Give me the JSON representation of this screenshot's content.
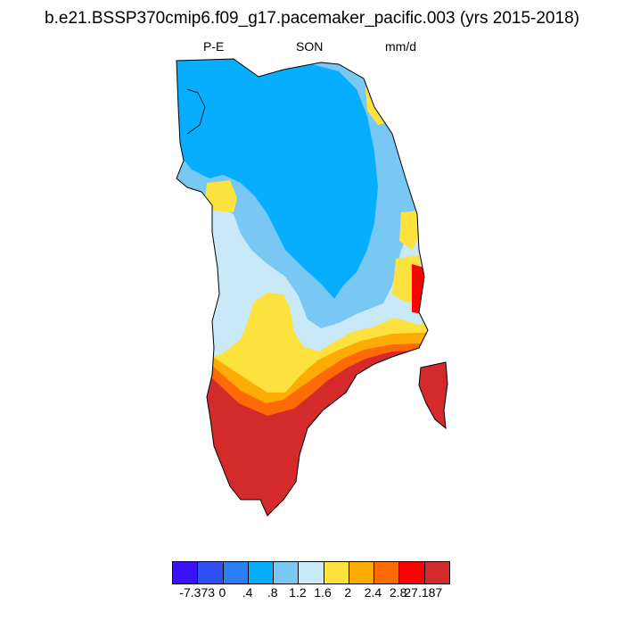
{
  "title": "b.e21.BSSP370cmip6.f09_g17.pacemaker_pacific.003 (yrs 2015-2018)",
  "left_label": "P-E",
  "center_label": "SON",
  "right_label": "mm/d",
  "colorbar": {
    "colors": [
      "#3a10f5",
      "#2f4ff0",
      "#2a80f2",
      "#06aefd",
      "#79c8f4",
      "#c9e8f8",
      "#fde13d",
      "#fdab05",
      "#fe6a05",
      "#fd0202",
      "#d52a2b"
    ],
    "labels": [
      "-7.373",
      "0",
      ".4",
      ".8",
      "1.2",
      "1.6",
      "2",
      "2.4",
      "2.8",
      "27.187"
    ]
  }
}
